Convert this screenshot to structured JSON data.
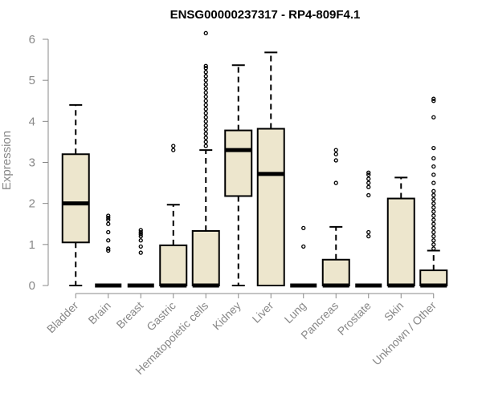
{
  "chart_data": {
    "type": "boxplot",
    "title": "ENSG00000237317 - RP4-809F4.1",
    "ylabel": "Expression",
    "xlabel": "",
    "ylim": [
      0,
      6.3
    ],
    "yticks": [
      0,
      1,
      2,
      3,
      4,
      5,
      6
    ],
    "box_color": "#ede6cd",
    "categories": [
      "Bladder",
      "Brain",
      "Breast",
      "Gastric",
      "Hematopoietic cells",
      "Kidney",
      "Liver",
      "Lung",
      "Pancreas",
      "Prostate",
      "Skin",
      "Unknown / Other"
    ],
    "boxes": [
      {
        "min": 0.0,
        "q1": 1.05,
        "median": 2.0,
        "q3": 3.2,
        "max": 4.4,
        "outliers": []
      },
      {
        "min": 0.0,
        "q1": 0.0,
        "median": 0.0,
        "q3": 0.0,
        "max": 0.0,
        "outliers": [
          0.85,
          0.9,
          1.1,
          1.3,
          1.5,
          1.6,
          1.65,
          1.7
        ]
      },
      {
        "min": 0.0,
        "q1": 0.0,
        "median": 0.0,
        "q3": 0.0,
        "max": 0.0,
        "outliers": [
          0.8,
          0.95,
          1.1,
          1.2,
          1.25,
          1.3,
          1.35
        ]
      },
      {
        "min": 0.0,
        "q1": 0.0,
        "median": 0.0,
        "q3": 0.98,
        "max": 1.97,
        "outliers": [
          3.3,
          3.4
        ]
      },
      {
        "min": 0.0,
        "q1": 0.0,
        "median": 0.0,
        "q3": 1.33,
        "max": 3.3,
        "outliers": [
          3.4,
          3.5,
          3.6,
          3.7,
          3.8,
          3.9,
          4.0,
          4.1,
          4.2,
          4.3,
          4.4,
          4.5,
          4.6,
          4.7,
          4.8,
          4.9,
          5.0,
          5.1,
          5.2,
          5.3,
          5.35,
          6.15
        ]
      },
      {
        "min": 0.0,
        "q1": 2.18,
        "median": 3.3,
        "q3": 3.78,
        "max": 5.37,
        "outliers": []
      },
      {
        "min": 0.0,
        "q1": 0.0,
        "median": 2.72,
        "q3": 3.82,
        "max": 5.68,
        "outliers": []
      },
      {
        "min": 0.0,
        "q1": 0.0,
        "median": 0.0,
        "q3": 0.0,
        "max": 0.0,
        "outliers": [
          0.95,
          1.4
        ]
      },
      {
        "min": 0.0,
        "q1": 0.0,
        "median": 0.0,
        "q3": 0.63,
        "max": 1.43,
        "outliers": [
          2.5,
          3.05,
          3.2,
          3.3
        ]
      },
      {
        "min": 0.0,
        "q1": 0.0,
        "median": 0.0,
        "q3": 0.0,
        "max": 0.0,
        "outliers": [
          1.2,
          1.3,
          2.2,
          2.4,
          2.5,
          2.6,
          2.7,
          2.75
        ]
      },
      {
        "min": 0.0,
        "q1": 0.0,
        "median": 0.0,
        "q3": 2.12,
        "max": 2.63,
        "outliers": []
      },
      {
        "min": 0.0,
        "q1": 0.0,
        "median": 0.0,
        "q3": 0.37,
        "max": 0.85,
        "outliers": [
          0.9,
          1.0,
          1.1,
          1.2,
          1.3,
          1.4,
          1.5,
          1.6,
          1.7,
          1.8,
          1.9,
          2.0,
          2.1,
          2.2,
          2.3,
          2.5,
          2.7,
          2.9,
          3.1,
          3.35,
          4.1,
          4.5,
          4.55
        ]
      }
    ]
  }
}
